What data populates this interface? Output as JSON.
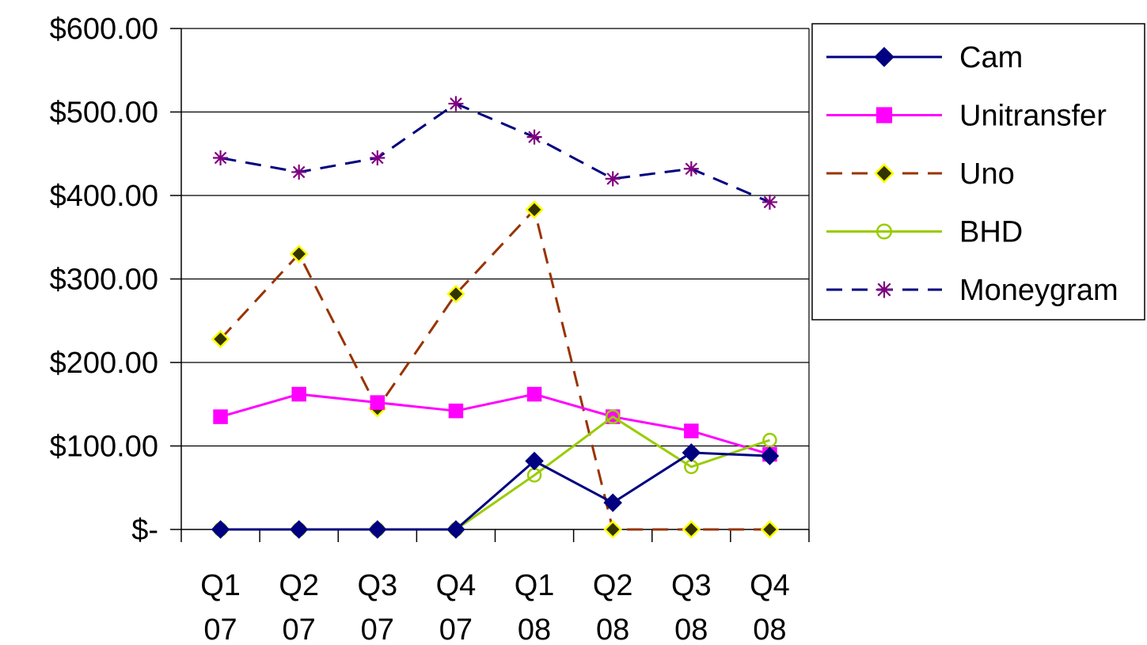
{
  "chart_data": {
    "type": "line",
    "title": "",
    "xlabel": "",
    "ylabel": "",
    "categories": [
      {
        "q": "Q1",
        "y": "07"
      },
      {
        "q": "Q2",
        "y": "07"
      },
      {
        "q": "Q3",
        "y": "07"
      },
      {
        "q": "Q4",
        "y": "07"
      },
      {
        "q": "Q1",
        "y": "08"
      },
      {
        "q": "Q2",
        "y": "08"
      },
      {
        "q": "Q3",
        "y": "08"
      },
      {
        "q": "Q4",
        "y": "08"
      }
    ],
    "ylim": [
      0,
      600
    ],
    "yticks": [
      {
        "value": 0,
        "label": "$-"
      },
      {
        "value": 100,
        "label": "$100.00"
      },
      {
        "value": 200,
        "label": "$200.00"
      },
      {
        "value": 300,
        "label": "$300.00"
      },
      {
        "value": 400,
        "label": "$400.00"
      },
      {
        "value": 500,
        "label": "$500.00"
      },
      {
        "value": 600,
        "label": "$600.00"
      }
    ],
    "grid": "horizontal",
    "legend_position": "right",
    "series": [
      {
        "name": "Cam",
        "color": "#000080",
        "dash": "solid",
        "marker": "diamond",
        "marker_fill": "#000080",
        "marker_stroke": "#000080",
        "values": [
          0,
          0,
          0,
          0,
          82,
          32,
          92,
          88
        ]
      },
      {
        "name": "Unitransfer",
        "color": "#FF00FF",
        "dash": "solid",
        "marker": "square",
        "marker_fill": "#FF00FF",
        "marker_stroke": "#FF00FF",
        "values": [
          135,
          162,
          152,
          142,
          162,
          135,
          118,
          90
        ]
      },
      {
        "name": "Uno",
        "color": "#993300",
        "dash": "dashed",
        "marker": "diamond",
        "marker_fill": "#333300",
        "marker_stroke": "#FFFF00",
        "values": [
          228,
          330,
          145,
          282,
          383,
          0,
          0,
          0
        ]
      },
      {
        "name": "BHD",
        "color": "#99CC00",
        "dash": "solid",
        "marker": "circle",
        "marker_fill": "none",
        "marker_stroke": "#99CC00",
        "values": [
          0,
          0,
          0,
          0,
          65,
          135,
          75,
          107
        ]
      },
      {
        "name": "Moneygram",
        "color": "#000080",
        "dash": "dashed",
        "marker": "star",
        "marker_fill": "none",
        "marker_stroke": "#800080",
        "values": [
          445,
          428,
          445,
          510,
          470,
          420,
          432,
          392
        ]
      }
    ]
  }
}
